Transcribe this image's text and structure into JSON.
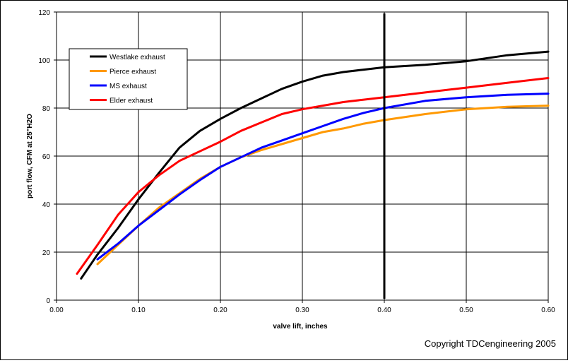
{
  "chart_data": {
    "type": "line",
    "title": "",
    "xlabel": "valve lift, inches",
    "ylabel": "port flow, CFM at 25\"H2O",
    "xlim": [
      0.0,
      0.6
    ],
    "ylim": [
      0,
      120
    ],
    "x_ticks": [
      "0.00",
      "0.10",
      "0.20",
      "0.30",
      "0.40",
      "0.50",
      "0.60"
    ],
    "y_ticks": [
      "0",
      "20",
      "40",
      "60",
      "80",
      "100",
      "120"
    ],
    "grid": true,
    "legend_position": "top-left",
    "vertical_marker_x": 0.4,
    "series": [
      {
        "name": "Westlake exhaust",
        "color": "#000000",
        "x": [
          0.03,
          0.05,
          0.075,
          0.1,
          0.125,
          0.15,
          0.175,
          0.2,
          0.225,
          0.25,
          0.275,
          0.3,
          0.325,
          0.35,
          0.375,
          0.4,
          0.45,
          0.5,
          0.55,
          0.6
        ],
        "y": [
          9,
          19,
          30,
          42,
          53,
          63.5,
          70.5,
          75.5,
          80,
          84,
          88,
          91,
          93.5,
          95,
          96,
          97,
          98,
          99.5,
          102,
          103.5
        ]
      },
      {
        "name": "Pierce exhaust",
        "color": "#ff9900",
        "x": [
          0.05,
          0.075,
          0.1,
          0.125,
          0.15,
          0.175,
          0.2,
          0.225,
          0.25,
          0.275,
          0.3,
          0.325,
          0.35,
          0.375,
          0.4,
          0.45,
          0.5,
          0.55,
          0.6
        ],
        "y": [
          15,
          23,
          31,
          38.5,
          44.5,
          50.5,
          55.5,
          59.5,
          62.5,
          65,
          67.5,
          70,
          71.5,
          73.5,
          75,
          77.5,
          79.5,
          80.5,
          81
        ]
      },
      {
        "name": "MS exhaust",
        "color": "#0000ff",
        "x": [
          0.05,
          0.075,
          0.1,
          0.125,
          0.15,
          0.175,
          0.2,
          0.225,
          0.25,
          0.275,
          0.3,
          0.325,
          0.35,
          0.375,
          0.4,
          0.45,
          0.5,
          0.55,
          0.6
        ],
        "y": [
          17,
          23.5,
          31,
          37.5,
          44,
          50,
          55.5,
          59.5,
          63.5,
          66.5,
          69.5,
          72.5,
          75.5,
          78,
          80,
          83,
          84.5,
          85.5,
          86
        ]
      },
      {
        "name": "Elder exhaust",
        "color": "#ff0000",
        "x": [
          0.025,
          0.05,
          0.075,
          0.1,
          0.125,
          0.15,
          0.175,
          0.2,
          0.225,
          0.25,
          0.275,
          0.3,
          0.325,
          0.35,
          0.375,
          0.4,
          0.45,
          0.5,
          0.55,
          0.6
        ],
        "y": [
          11,
          23,
          35.5,
          45,
          52,
          58,
          62,
          66,
          70.5,
          74,
          77.5,
          79.5,
          81,
          82.5,
          83.5,
          84.5,
          86.5,
          88.5,
          90.5,
          92.5
        ]
      }
    ]
  },
  "copyright": "Copyright TDCengineering 2005"
}
